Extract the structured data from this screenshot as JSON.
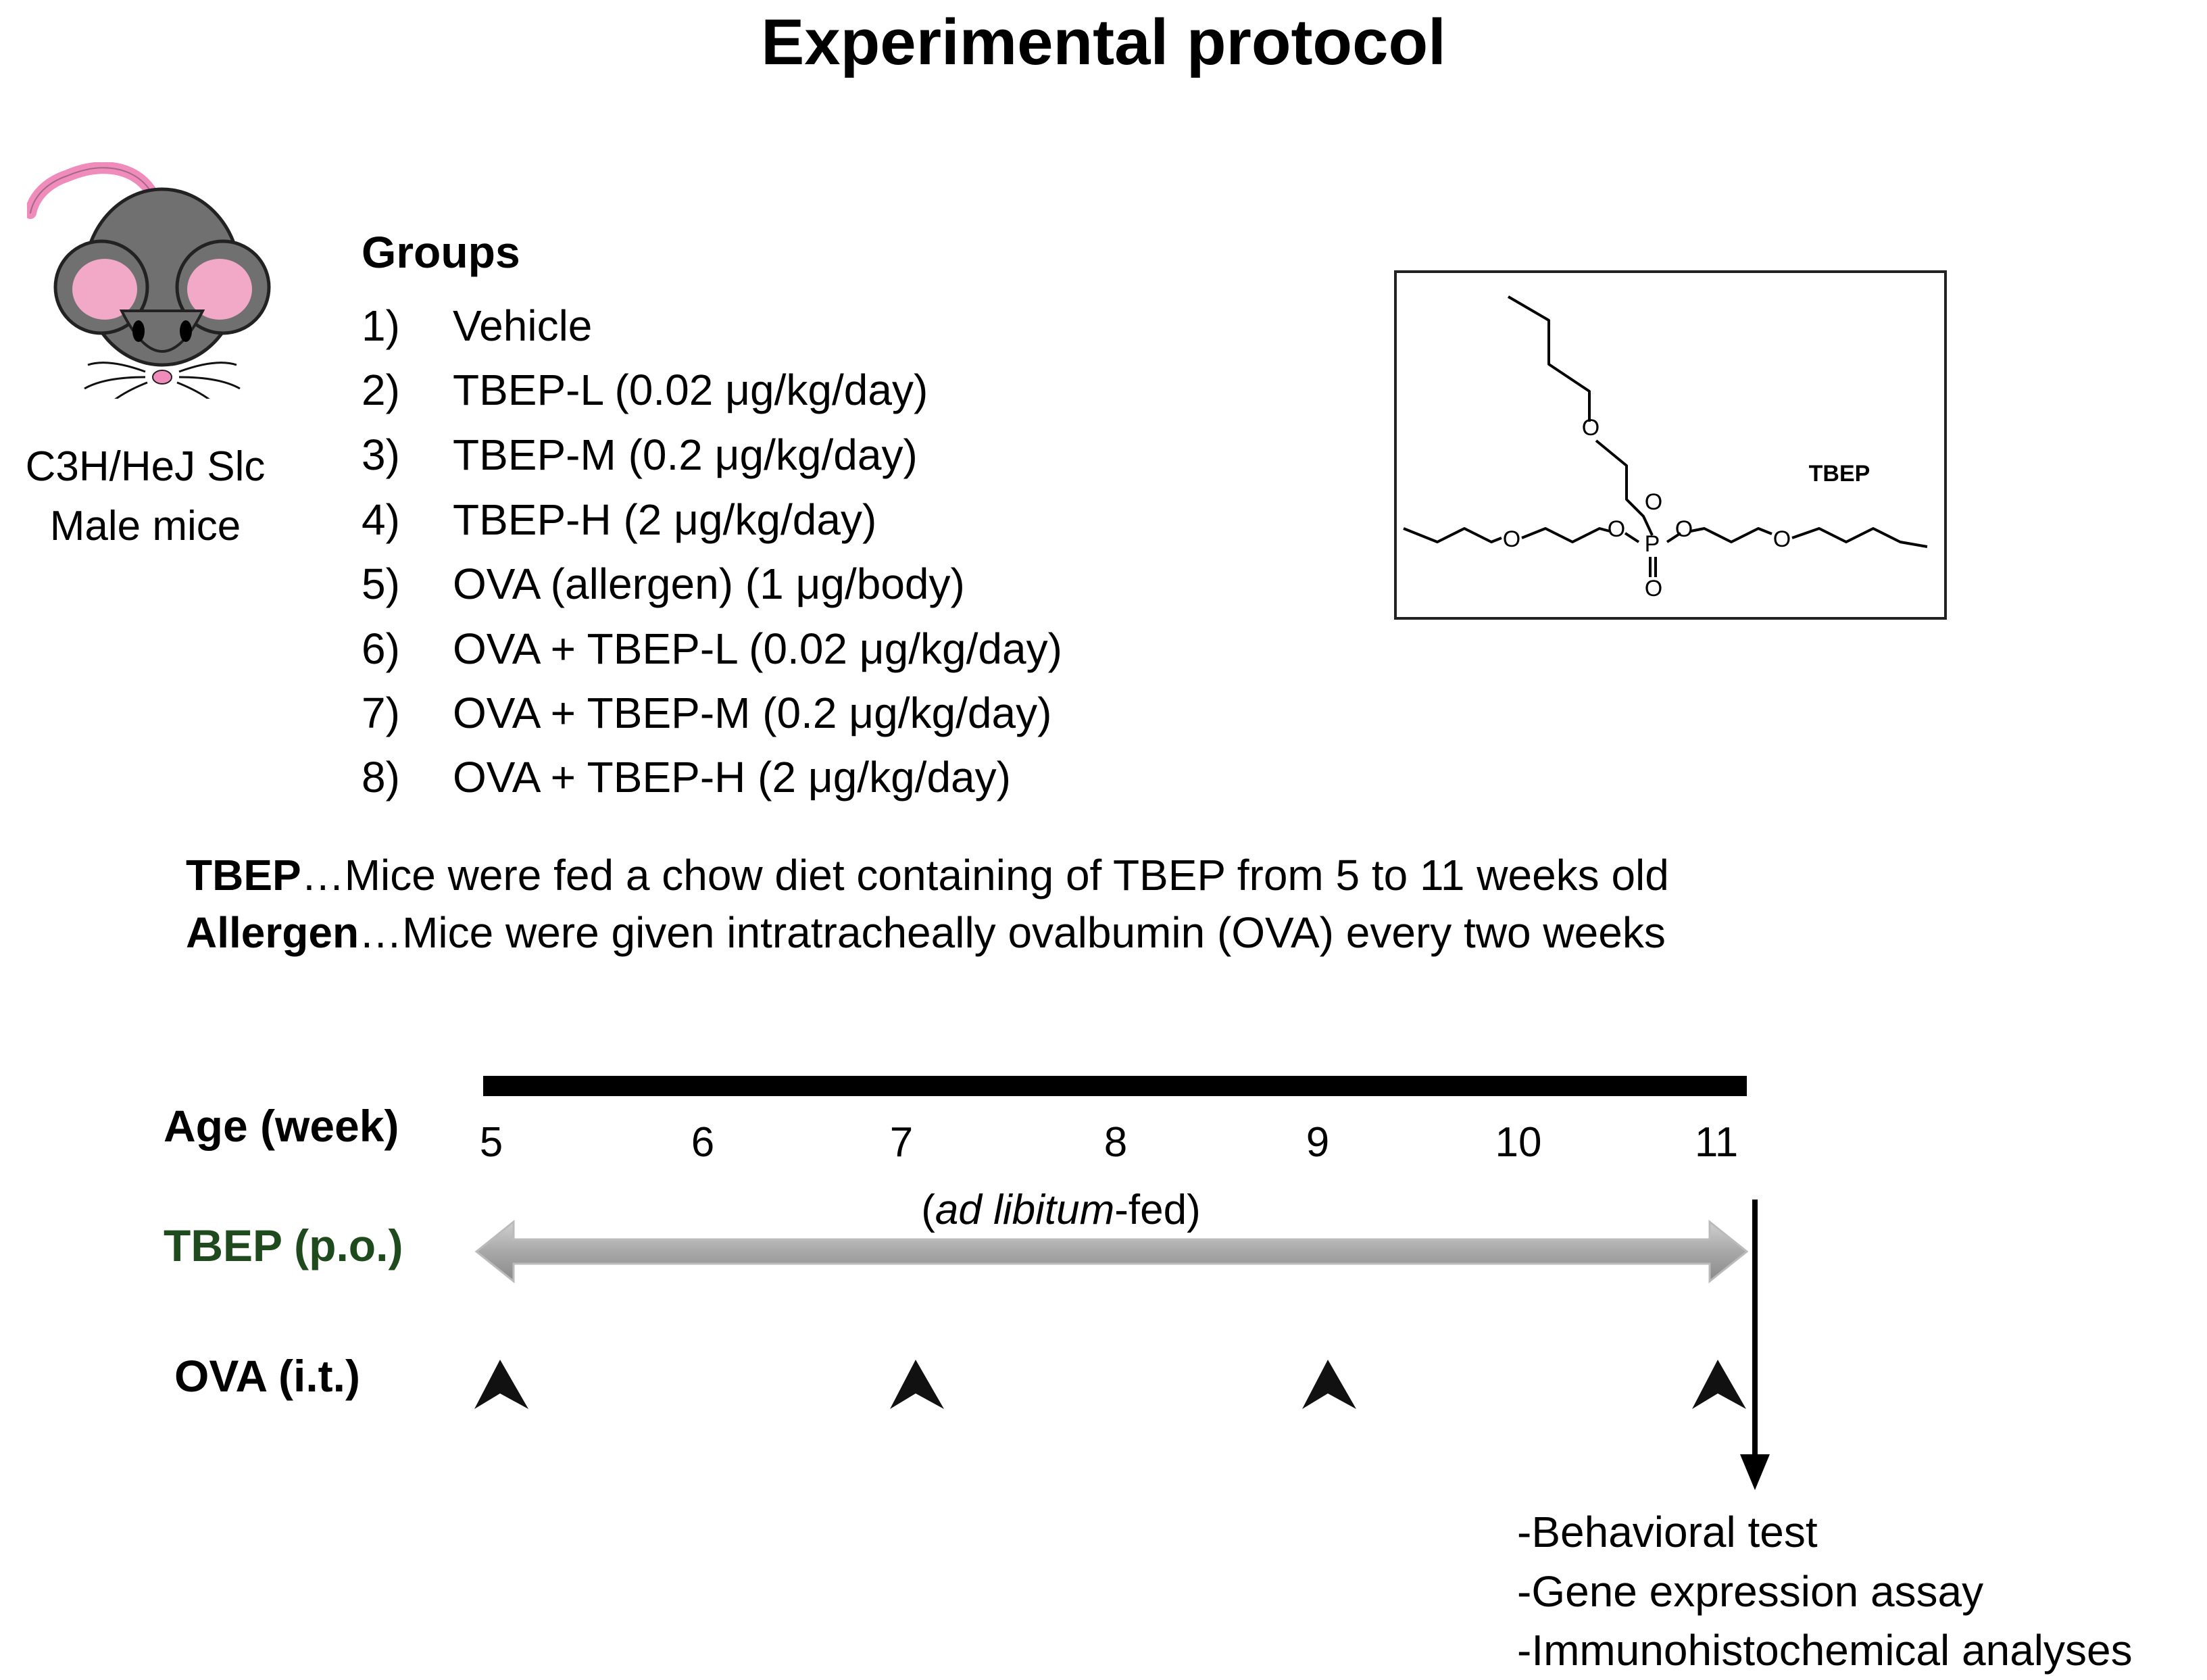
{
  "title": "Experimental protocol",
  "mouse": {
    "strain_line1": "C3H/HeJ Slc",
    "strain_line2": "Male mice",
    "colors": {
      "body": "#707070",
      "ear_inner": "#f2a9c8",
      "tail": "#f08cbc",
      "nose": "#f08cbc"
    }
  },
  "groups": {
    "heading": "Groups",
    "items": [
      {
        "num": "1)",
        "label": "Vehicle"
      },
      {
        "num": "2)",
        "label": "TBEP-L (0.02 μg/kg/day)"
      },
      {
        "num": "3)",
        "label": "TBEP-M (0.2 μg/kg/day)"
      },
      {
        "num": "4)",
        "label": "TBEP-H (2 μg/kg/day)"
      },
      {
        "num": "5)",
        "label": "OVA (allergen) (1 μg/body)"
      },
      {
        "num": "6)",
        "label": "OVA + TBEP-L (0.02 μg/kg/day)"
      },
      {
        "num": "7)",
        "label": "OVA + TBEP-M (0.2 μg/kg/day)"
      },
      {
        "num": "8)",
        "label": "OVA + TBEP-H (2 μg/kg/day)"
      }
    ]
  },
  "structure": {
    "label": "TBEP",
    "atom_O": "O",
    "atom_P": "P"
  },
  "notes": [
    {
      "bold": "TBEP",
      "text": "…Mice were fed a chow diet containing of TBEP from 5 to 11 weeks old"
    },
    {
      "bold": "Allergen",
      "text": "…Mice were given intratracheally ovalbumin (OVA) every two weeks"
    }
  ],
  "timeline": {
    "age_label": "Age (week)",
    "weeks": [
      "5",
      "6",
      "7",
      "8",
      "9",
      "10",
      "11"
    ],
    "tbep_label": "TBEP (p.o.)",
    "tbep_color": "#1e4a1e",
    "feeding_note_open": "(",
    "feeding_note_italic": "ad libitum",
    "feeding_note_close": "-fed)",
    "tbep_span_weeks": [
      "5",
      "11"
    ],
    "ova_label": "OVA (i.t.)",
    "ova_weeks": [
      "5",
      "7",
      "9",
      "11"
    ],
    "endpoint_week": "11",
    "outcomes": [
      "-Behavioral test",
      "-Gene expression assay",
      "-Immunohistochemical analyses"
    ]
  }
}
